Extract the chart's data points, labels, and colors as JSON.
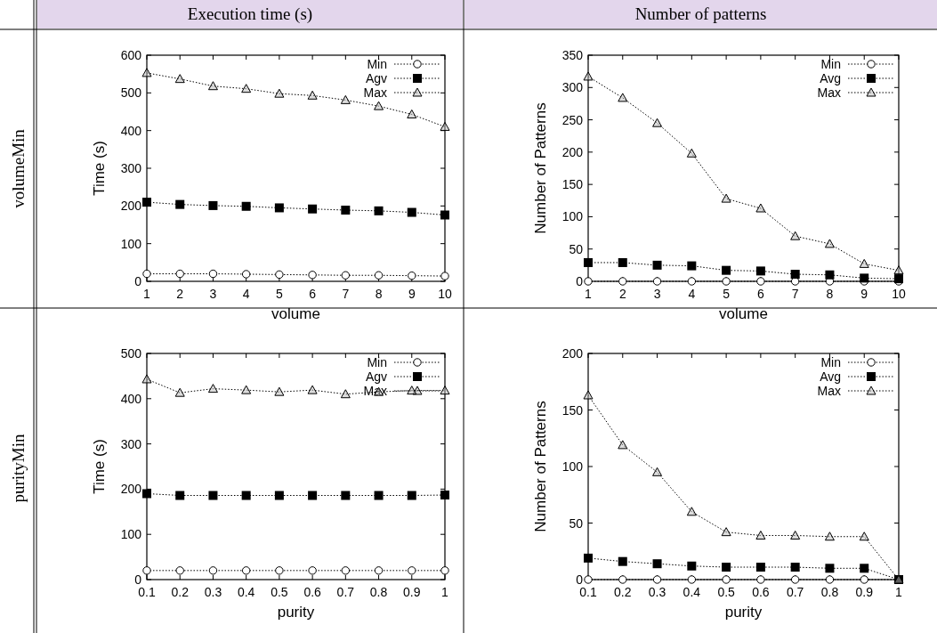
{
  "chart_data": [
    {
      "type": "line",
      "xlabel": "volume",
      "ylabel": "Time (s)",
      "annotations": [
        "Execution time (s)",
        "volumeMin"
      ],
      "x": [
        1,
        2,
        3,
        4,
        5,
        6,
        7,
        8,
        9,
        10
      ],
      "xlim": [
        1,
        10
      ],
      "xticks": [
        1,
        2,
        3,
        4,
        5,
        6,
        7,
        8,
        9,
        10
      ],
      "ylim": [
        0,
        600
      ],
      "yticks": [
        0,
        100,
        200,
        300,
        400,
        500,
        600
      ],
      "legend": "top right",
      "line_style": "dotted",
      "series": [
        {
          "name": "Min",
          "color": "#000000",
          "marker": "circle",
          "values": [
            20,
            20,
            20,
            19,
            18,
            17,
            16,
            16,
            15,
            14
          ]
        },
        {
          "name": "Agv",
          "color": "#000000",
          "marker": "square",
          "values": [
            210,
            204,
            201,
            199,
            195,
            192,
            189,
            187,
            183,
            176
          ]
        },
        {
          "name": "Max",
          "color": "#000000",
          "marker": "triangle",
          "values": [
            553,
            537,
            518,
            511,
            498,
            493,
            481,
            465,
            443,
            410
          ]
        }
      ]
    },
    {
      "type": "line",
      "xlabel": "volume",
      "ylabel": "Number of Patterns",
      "annotations": [
        "Number of patterns"
      ],
      "x": [
        1,
        2,
        3,
        4,
        5,
        6,
        7,
        8,
        9,
        10
      ],
      "xlim": [
        1,
        10
      ],
      "xticks": [
        1,
        2,
        3,
        4,
        5,
        6,
        7,
        8,
        9,
        10
      ],
      "ylim": [
        0,
        350
      ],
      "yticks": [
        0,
        50,
        100,
        150,
        200,
        250,
        300,
        350
      ],
      "legend": "top right",
      "line_style": "dotted",
      "series": [
        {
          "name": "Min",
          "color": "#000000",
          "marker": "circle",
          "values": [
            0,
            0,
            0,
            0,
            0,
            0,
            0,
            0,
            0,
            0
          ]
        },
        {
          "name": "Avg",
          "color": "#000000",
          "marker": "square",
          "values": [
            29,
            29,
            25,
            24,
            17,
            16,
            11,
            10,
            5,
            4
          ]
        },
        {
          "name": "Max",
          "color": "#000000",
          "marker": "triangle",
          "values": [
            317,
            284,
            245,
            198,
            128,
            113,
            70,
            58,
            27,
            17
          ]
        }
      ]
    },
    {
      "type": "line",
      "xlabel": "purity",
      "ylabel": "Time (s)",
      "annotations": [
        "purityMin"
      ],
      "x": [
        0.1,
        0.2,
        0.3,
        0.4,
        0.5,
        0.6,
        0.7,
        0.8,
        0.9,
        1
      ],
      "xlim": [
        0.1,
        1
      ],
      "xticks": [
        0.1,
        0.2,
        0.3,
        0.4,
        0.5,
        0.6,
        0.7,
        0.8,
        0.9,
        1
      ],
      "ylim": [
        0,
        500
      ],
      "yticks": [
        0,
        100,
        200,
        300,
        400,
        500
      ],
      "legend": "top right",
      "line_style": "dotted",
      "series": [
        {
          "name": "Min",
          "color": "#000000",
          "marker": "circle",
          "values": [
            20,
            20,
            20,
            20,
            20,
            20,
            20,
            20,
            20,
            20
          ]
        },
        {
          "name": "Agv",
          "color": "#000000",
          "marker": "square",
          "values": [
            190,
            186,
            186,
            186,
            186,
            186,
            186,
            186,
            186,
            187
          ]
        },
        {
          "name": "Max",
          "color": "#000000",
          "marker": "triangle",
          "values": [
            443,
            413,
            422,
            419,
            415,
            419,
            410,
            415,
            418,
            418
          ]
        }
      ]
    },
    {
      "type": "line",
      "xlabel": "purity",
      "ylabel": "Number of Patterns",
      "x": [
        0.1,
        0.2,
        0.3,
        0.4,
        0.5,
        0.6,
        0.7,
        0.8,
        0.9,
        1
      ],
      "xlim": [
        0.1,
        1
      ],
      "xticks": [
        0.1,
        0.2,
        0.3,
        0.4,
        0.5,
        0.6,
        0.7,
        0.8,
        0.9,
        1
      ],
      "ylim": [
        0,
        200
      ],
      "yticks": [
        0,
        50,
        100,
        150,
        200
      ],
      "legend": "top right",
      "line_style": "dotted",
      "series": [
        {
          "name": "Min",
          "color": "#000000",
          "marker": "circle",
          "values": [
            0,
            0,
            0,
            0,
            0,
            0,
            0,
            0,
            0,
            0
          ]
        },
        {
          "name": "Avg",
          "color": "#000000",
          "marker": "square",
          "values": [
            19,
            16,
            14,
            12,
            11,
            11,
            11,
            10,
            10,
            0
          ]
        },
        {
          "name": "Max",
          "color": "#000000",
          "marker": "triangle",
          "values": [
            163,
            119,
            95,
            60,
            42,
            39,
            39,
            38,
            38,
            0
          ]
        }
      ]
    }
  ]
}
